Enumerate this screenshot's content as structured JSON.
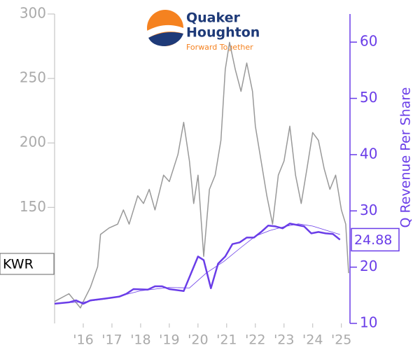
{
  "chart_data": {
    "type": "line",
    "logo": {
      "name_line1": "Quaker",
      "name_line2": "Houghton",
      "tagline": "Forward Together"
    },
    "y2label": "Q Revenue Per Share",
    "xlim": [
      2015,
      2025.3
    ],
    "xticks": [
      {
        "value": 2016,
        "label": "'16"
      },
      {
        "value": 2017,
        "label": "'17"
      },
      {
        "value": 2018,
        "label": "'18"
      },
      {
        "value": 2019,
        "label": "'19"
      },
      {
        "value": 2020,
        "label": "'20"
      },
      {
        "value": 2021,
        "label": "'21"
      },
      {
        "value": 2022,
        "label": "'22"
      },
      {
        "value": 2023,
        "label": "'23"
      },
      {
        "value": 2024,
        "label": "'24"
      },
      {
        "value": 2025,
        "label": "'25"
      }
    ],
    "ylim": [
      60,
      300
    ],
    "yticks": [
      150,
      200,
      250,
      300
    ],
    "y2lim": [
      10,
      65
    ],
    "y2ticks": [
      10,
      20,
      30,
      40,
      50,
      60
    ],
    "series": [
      {
        "name": "KWR",
        "color": "#999999",
        "x": [
          2015.0,
          2015.5,
          2015.9,
          2016.0,
          2016.25,
          2016.5,
          2016.6,
          2016.9,
          2017.2,
          2017.4,
          2017.6,
          2017.9,
          2018.1,
          2018.3,
          2018.5,
          2018.8,
          2019.0,
          2019.3,
          2019.5,
          2019.7,
          2019.85,
          2020.0,
          2020.2,
          2020.4,
          2020.6,
          2020.8,
          2020.95,
          2021.1,
          2021.3,
          2021.5,
          2021.7,
          2021.9,
          2022.0,
          2022.2,
          2022.4,
          2022.6,
          2022.8,
          2023.0,
          2023.2,
          2023.4,
          2023.6,
          2023.8,
          2024.0,
          2024.2,
          2024.4,
          2024.6,
          2024.8,
          2025.0,
          2025.15,
          2025.25
        ],
        "values": [
          77,
          83,
          72,
          77,
          88,
          104,
          129,
          134,
          137,
          148,
          137,
          159,
          153,
          164,
          148,
          175,
          170,
          191,
          216,
          186,
          153,
          175,
          112,
          164,
          175,
          202,
          257,
          278,
          257,
          240,
          262,
          240,
          213,
          186,
          159,
          137,
          175,
          186,
          213,
          175,
          153,
          180,
          208,
          202,
          180,
          164,
          175,
          148,
          137,
          99
        ]
      },
      {
        "name": "Q Revenue",
        "color": "#6a3de8",
        "axis": "y2",
        "width": 2.5,
        "x": [
          2015.0,
          2015.5,
          2015.75,
          2016.0,
          2016.25,
          2016.75,
          2017.25,
          2017.5,
          2017.75,
          2018.25,
          2018.5,
          2018.75,
          2019.0,
          2019.5,
          2020.0,
          2020.2,
          2020.45,
          2020.7,
          2020.95,
          2021.2,
          2021.45,
          2021.7,
          2021.95,
          2022.2,
          2022.45,
          2022.7,
          2022.95,
          2023.2,
          2023.45,
          2023.7,
          2023.95,
          2024.2,
          2024.45,
          2024.7,
          2024.95
        ],
        "values": [
          13.5,
          13.75,
          14.1,
          13.5,
          14.1,
          14.4,
          14.75,
          15.25,
          16.1,
          16,
          16.6,
          16.6,
          16.1,
          15.75,
          21.9,
          21.25,
          16.25,
          20.6,
          21.9,
          24.1,
          24.4,
          25.25,
          25.25,
          26.25,
          27.4,
          27.25,
          26.9,
          27.75,
          27.5,
          27.25,
          26,
          26.25,
          26,
          25.9,
          24.88
        ]
      },
      {
        "color": "#6a3de8",
        "axis": "y2",
        "width": 0.8,
        "x": [
          2015.0,
          2016.0,
          2017.0,
          2018.0,
          2019.0,
          2019.7,
          2020.3,
          2020.9,
          2021.5,
          2022.0,
          2022.5,
          2023.0,
          2023.5,
          2024.0,
          2024.5,
          2024.95
        ],
        "values": [
          13.6,
          13.8,
          14.5,
          15.8,
          16.4,
          16.3,
          19,
          21,
          23.5,
          25.5,
          26.5,
          27.2,
          27.7,
          27.3,
          26.5,
          25.8
        ]
      }
    ]
  }
}
